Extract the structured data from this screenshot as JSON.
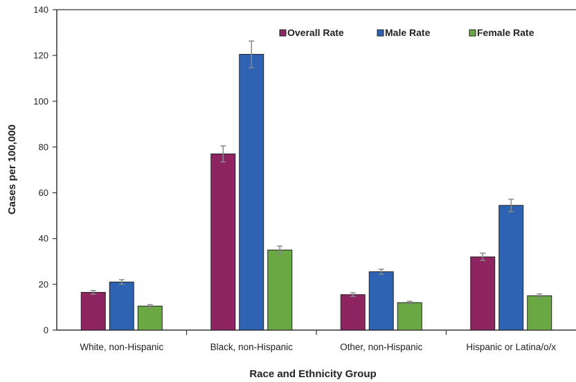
{
  "chart_data": {
    "type": "bar",
    "title": "",
    "xlabel": "Race and Ethnicity Group",
    "ylabel": "Cases per 100,000",
    "ylim": [
      0,
      140
    ],
    "yticks": [
      "0",
      "20",
      "40",
      "60",
      "80",
      "100",
      "120",
      "140"
    ],
    "categories": [
      "White, non-Hispanic",
      "Black, non-Hispanic",
      "Other, non-Hispanic",
      "Hispanic or Latina/o/x"
    ],
    "series": [
      {
        "name": "Overall Rate",
        "color": "#8e2461",
        "values": [
          16.5,
          77,
          15.5,
          32
        ],
        "err": [
          0.8,
          3.5,
          0.8,
          1.6
        ]
      },
      {
        "name": "Male Rate",
        "color": "#2e62b3",
        "values": [
          21,
          120.5,
          25.5,
          54.5
        ],
        "err": [
          1.0,
          5.8,
          1.1,
          2.7
        ]
      },
      {
        "name": "Female Rate",
        "color": "#6aa843",
        "values": [
          10.5,
          35,
          12,
          15
        ],
        "err": [
          0.6,
          1.7,
          0.6,
          0.8
        ]
      }
    ],
    "legend_position": "top-right",
    "grid": false
  }
}
